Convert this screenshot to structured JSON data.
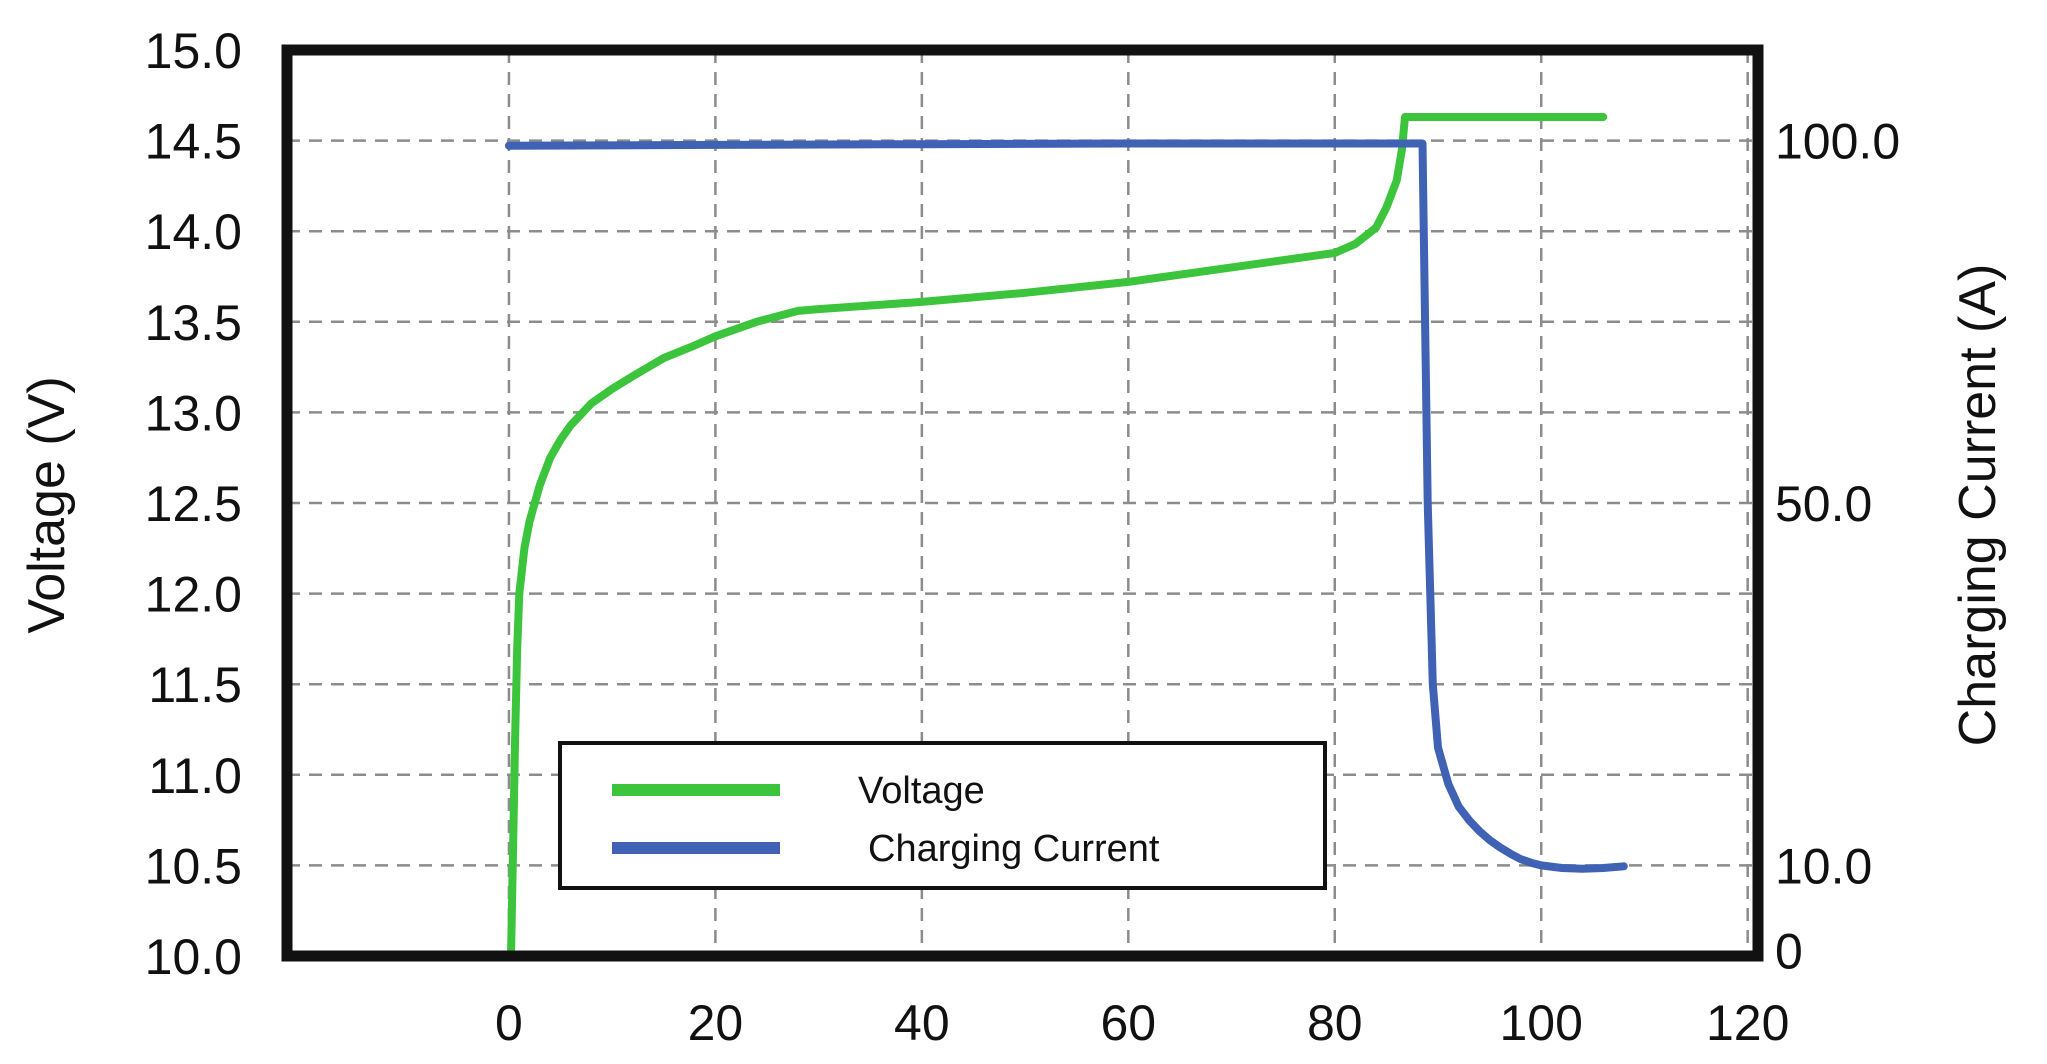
{
  "chart_data": {
    "type": "line",
    "xlabel": "",
    "ylabel": "Voltage (V)",
    "y2label": "Charging Current (A)",
    "x_ticks": [
      0,
      20,
      40,
      60,
      80,
      100,
      120
    ],
    "x_tick_labels": [
      "0",
      "20",
      "40",
      "60",
      "80",
      "100",
      "120"
    ],
    "xlim": [
      -21.5,
      121
    ],
    "y_ticks": [
      10.0,
      10.5,
      11.0,
      11.5,
      12.0,
      12.5,
      13.0,
      13.5,
      14.0,
      14.5,
      15.0
    ],
    "y_tick_labels": [
      "10.0",
      "10.5",
      "11.0",
      "11.5",
      "12.0",
      "12.5",
      "13.0",
      "13.5",
      "14.0",
      "14.5",
      "15.0"
    ],
    "ylim": [
      10.0,
      15.0
    ],
    "y2_ticks": [
      0,
      10,
      50,
      100
    ],
    "y2_tick_labels": [
      "0",
      "10.0",
      "50.0",
      "100.0"
    ],
    "y2_tick_voltage_positions": [
      10.03,
      10.5,
      12.5,
      14.5
    ],
    "grid": true,
    "grid_style": "dashed",
    "legend_position": "bottom-center",
    "series": [
      {
        "name": "Voltage",
        "color": "#3cc43c",
        "axis": "left",
        "x": [
          0.2,
          0.4,
          0.6,
          0.8,
          1.0,
          1.5,
          2,
          3,
          4,
          5,
          6,
          8,
          10,
          12,
          15,
          18,
          20,
          24,
          28,
          30,
          40,
          50,
          60,
          70,
          80,
          82,
          84,
          85,
          86,
          86.5,
          86.8,
          87.3,
          90,
          100,
          106
        ],
        "values": [
          10.0,
          10.6,
          11.2,
          11.7,
          12.0,
          12.25,
          12.4,
          12.6,
          12.75,
          12.85,
          12.93,
          13.05,
          13.13,
          13.2,
          13.3,
          13.37,
          13.42,
          13.5,
          13.56,
          13.57,
          13.61,
          13.66,
          13.72,
          13.8,
          13.88,
          13.93,
          14.02,
          14.13,
          14.28,
          14.45,
          14.63,
          14.63,
          14.63,
          14.63,
          14.63
        ]
      },
      {
        "name": "Charging Current",
        "color": "#3f62b5",
        "axis": "right",
        "x": [
          0,
          20,
          40,
          60,
          80,
          87,
          88.5,
          89,
          89.5,
          90,
          91,
          92,
          93,
          94,
          95,
          96,
          97,
          98,
          99,
          100,
          102,
          104,
          106,
          108
        ],
        "values": [
          99.3,
          99.4,
          99.5,
          99.6,
          99.6,
          99.6,
          99.6,
          50,
          30,
          23,
          19,
          16.5,
          15,
          13.8,
          12.8,
          12,
          11.3,
          10.7,
          10.3,
          10.0,
          9.7,
          9.6,
          9.7,
          9.9
        ]
      }
    ]
  }
}
